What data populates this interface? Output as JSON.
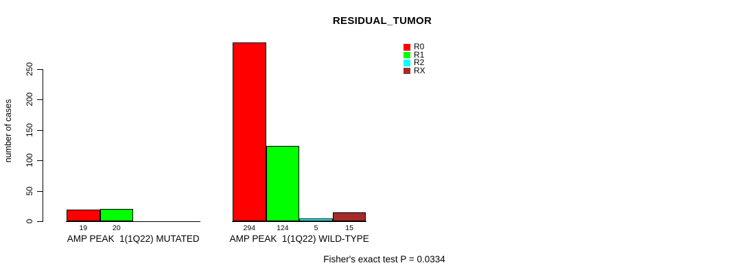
{
  "title": "RESIDUAL_TUMOR",
  "y_axis": {
    "label": "number of cases",
    "tick_labels": [
      "0",
      "50",
      "100",
      "150",
      "200",
      "250"
    ]
  },
  "footer": "Fisher's exact test P = 0.0334",
  "legend": {
    "position": "top-right",
    "items": [
      {
        "label": "R0",
        "color": "#FF0000"
      },
      {
        "label": "R1",
        "color": "#00FF00"
      },
      {
        "label": "R2",
        "color": "#00FFFF"
      },
      {
        "label": "RX",
        "color": "#A52A2A"
      }
    ]
  },
  "chart_data": {
    "type": "bar",
    "title": "RESIDUAL_TUMOR",
    "xlabel": "",
    "ylabel": "number of cases",
    "ylim": [
      0,
      250
    ],
    "yticks": [
      0,
      50,
      100,
      150,
      200,
      250
    ],
    "grid": false,
    "legend_position": "top-right",
    "categories": [
      "AMP PEAK  1(1Q22) MUTATED",
      "AMP PEAK  1(1Q22) WILD-TYPE"
    ],
    "series": [
      {
        "name": "R0",
        "color": "#FF0000",
        "values": [
          19,
          294
        ]
      },
      {
        "name": "R1",
        "color": "#00FF00",
        "values": [
          20,
          124
        ]
      },
      {
        "name": "R2",
        "color": "#00FFFF",
        "values": [
          0,
          5
        ]
      },
      {
        "name": "RX",
        "color": "#A52A2A",
        "values": [
          0,
          15
        ]
      }
    ],
    "bar_value_labels": [
      [
        "19",
        "20",
        "",
        ""
      ],
      [
        "294",
        "124",
        "5",
        "15"
      ]
    ],
    "annotation": "Fisher's exact test P = 0.0334"
  }
}
